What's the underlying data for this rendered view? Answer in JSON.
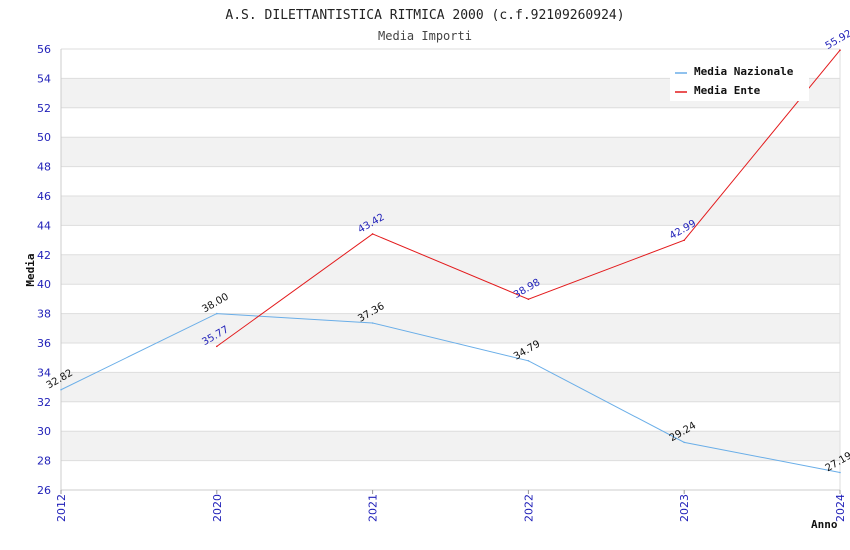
{
  "chart_data": {
    "type": "line",
    "title": "A.S. DILETTANTISTICA RITMICA 2000 (c.f.92109260924)",
    "subtitle": "Media Importi",
    "xlabel": "Anno",
    "ylabel": "Media",
    "categories": [
      "2012",
      "2020",
      "2021",
      "2022",
      "2023",
      "2024"
    ],
    "ylim": [
      26,
      56
    ],
    "ytick_step": 2,
    "grid": true,
    "legend_position": "top-right",
    "series": [
      {
        "name": "Media Nazionale",
        "color": "#6aaee8",
        "label_color": "#111111",
        "values": [
          32.82,
          38.0,
          37.36,
          34.79,
          29.24,
          27.19
        ],
        "labels": [
          "32.82",
          "38.00",
          "37.36",
          "34.79",
          "29.24",
          "27.19"
        ]
      },
      {
        "name": "Media Ente",
        "color": "#e31a1c",
        "label_color": "#1f1fb8",
        "values": [
          null,
          35.77,
          43.42,
          38.98,
          42.99,
          55.92
        ],
        "labels": [
          "",
          "35.77",
          "43.42",
          "38.98",
          "42.99",
          "55.92"
        ]
      }
    ]
  }
}
